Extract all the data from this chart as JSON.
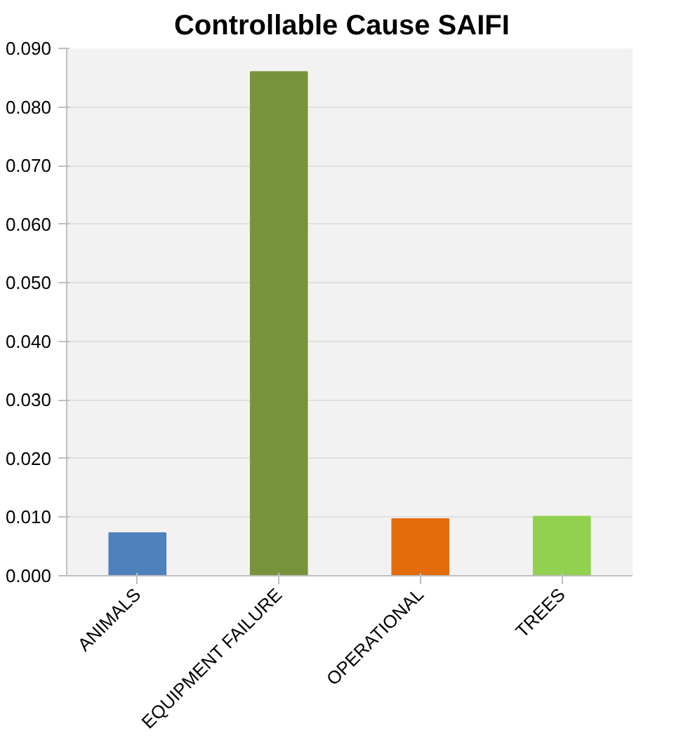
{
  "chart_data": {
    "type": "bar",
    "title": "Controllable Cause   SAIFI",
    "categories": [
      "ANIMALS",
      "EQUIPMENT FAILURE",
      "OPERATIONAL",
      "TREES"
    ],
    "values": [
      0.0073,
      0.086,
      0.0097,
      0.0101
    ],
    "colors": [
      "#4f81bd",
      "#77933c",
      "#e46c0a",
      "#92d050"
    ],
    "ylim": [
      0,
      0.09
    ],
    "yticks": [
      {
        "value": 0,
        "label": "0.000"
      },
      {
        "value": 0.01,
        "label": "0.010"
      },
      {
        "value": 0.02,
        "label": "0.020"
      },
      {
        "value": 0.03,
        "label": "0.030"
      },
      {
        "value": 0.04,
        "label": "0.040"
      },
      {
        "value": 0.05,
        "label": "0.050"
      },
      {
        "value": 0.06,
        "label": "0.060"
      },
      {
        "value": 0.07,
        "label": "0.070"
      },
      {
        "value": 0.08,
        "label": "0.080"
      },
      {
        "value": 0.09,
        "label": "0.090"
      }
    ],
    "grid": "y"
  }
}
